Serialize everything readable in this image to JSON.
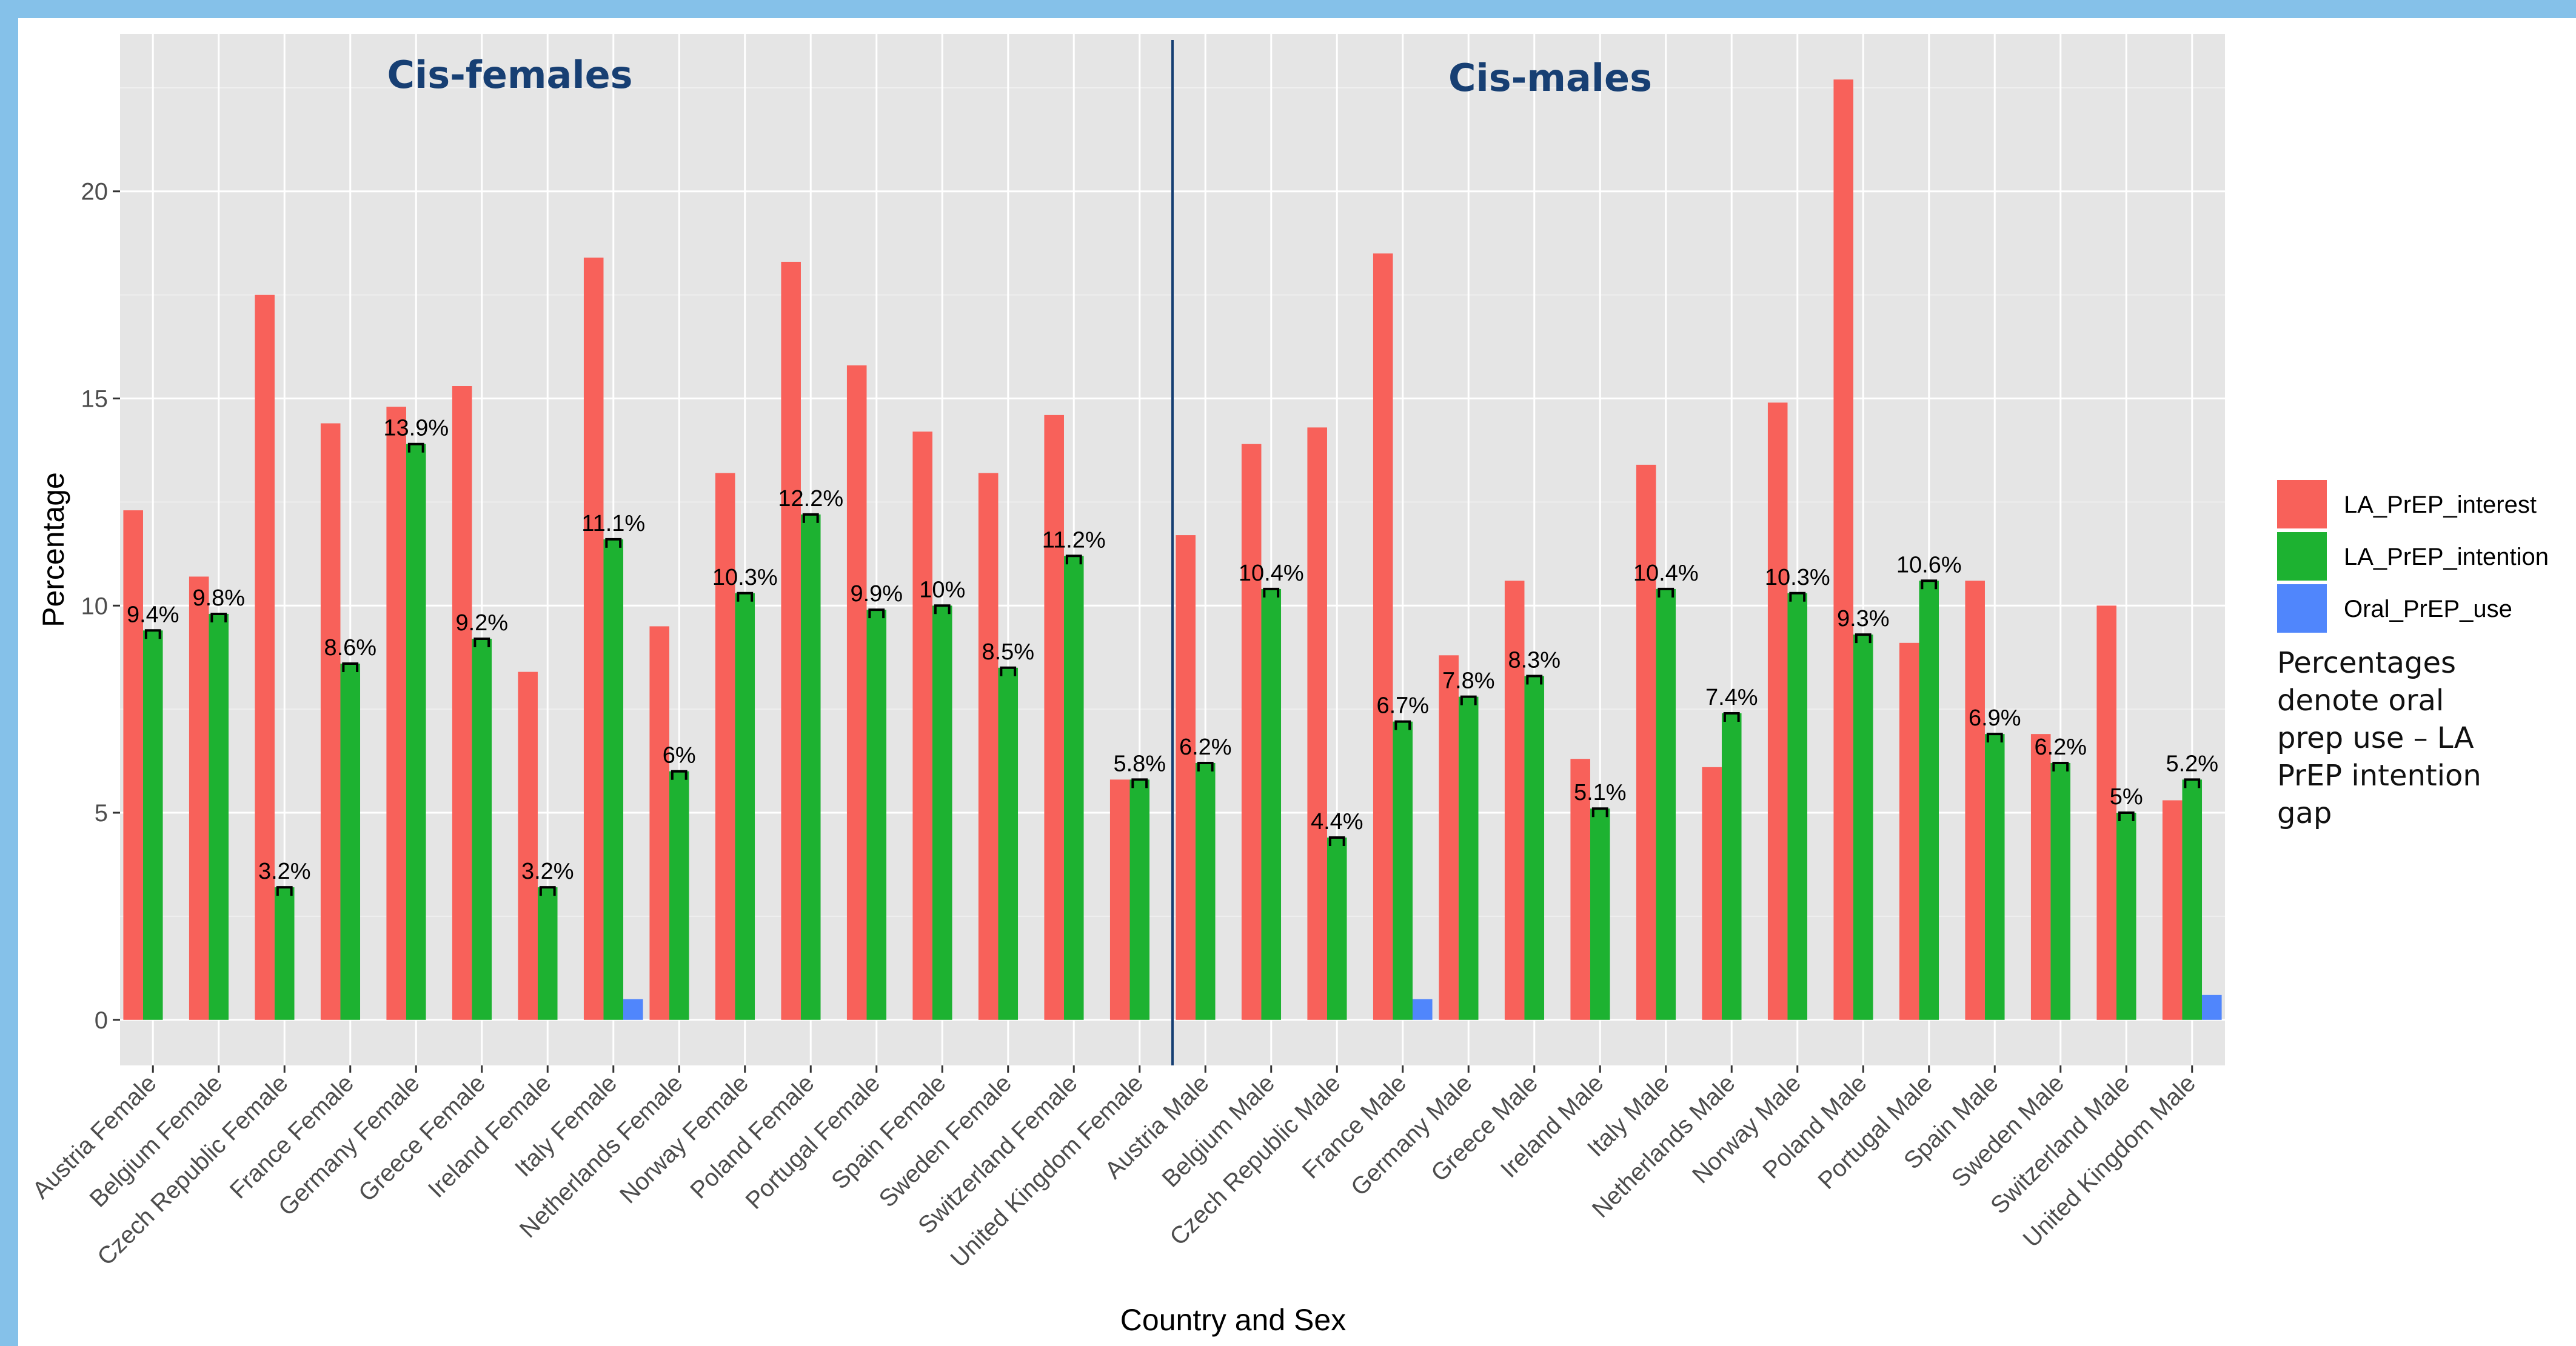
{
  "chart_data": {
    "type": "bar",
    "xlabel": "Country and Sex",
    "ylabel": "Percentage",
    "ylim": [
      -1.1,
      23.8
    ],
    "yticks": [
      0,
      5,
      10,
      15,
      20
    ],
    "grid": true,
    "legend_position": "right",
    "panel_titles": [
      "Cis-females",
      "Cis-males"
    ],
    "categories": [
      "Austria Female",
      "Belgium Female",
      "Czech Republic Female",
      "France Female",
      "Germany Female",
      "Greece Female",
      "Ireland Female",
      "Italy Female",
      "Netherlands Female",
      "Norway Female",
      "Poland Female",
      "Portugal Female",
      "Spain Female",
      "Sweden Female",
      "Switzerland Female",
      "United Kingdom Female",
      "Austria Male",
      "Belgium Male",
      "Czech Republic Male",
      "France Male",
      "Germany Male",
      "Greece Male",
      "Ireland Male",
      "Italy Male",
      "Netherlands Male",
      "Norway Male",
      "Poland Male",
      "Portugal Male",
      "Spain Male",
      "Sweden Male",
      "Switzerland Male",
      "United Kingdom Male"
    ],
    "series": [
      {
        "name": "LA_PrEP_interest",
        "color": "#f8615a",
        "values": [
          12.3,
          10.7,
          17.5,
          14.4,
          14.8,
          15.3,
          8.4,
          18.4,
          9.5,
          13.2,
          18.3,
          15.8,
          14.2,
          13.2,
          14.6,
          5.8,
          11.7,
          13.9,
          14.3,
          18.5,
          8.8,
          10.6,
          6.3,
          13.4,
          6.1,
          14.9,
          22.7,
          9.1,
          10.6,
          6.9,
          10.0,
          5.3
        ]
      },
      {
        "name": "LA_PrEP_intention",
        "color": "#1db231",
        "values": [
          9.4,
          9.8,
          3.2,
          8.6,
          13.9,
          9.2,
          3.2,
          11.6,
          6.0,
          10.3,
          12.2,
          9.9,
          10.0,
          8.5,
          11.2,
          5.8,
          6.2,
          10.4,
          4.4,
          7.2,
          7.8,
          8.3,
          5.1,
          10.4,
          7.4,
          10.3,
          9.3,
          10.6,
          6.9,
          6.2,
          5.0,
          5.8
        ]
      },
      {
        "name": "Oral_PrEP_use",
        "color": "#5086fc",
        "values": [
          0,
          0,
          0,
          0,
          0,
          0,
          0,
          0.5,
          0,
          0,
          0,
          0,
          0,
          0,
          0,
          0,
          0,
          0,
          0,
          0.5,
          0,
          0,
          0,
          0,
          0,
          0,
          0,
          0,
          0,
          0,
          0,
          0.6
        ]
      }
    ],
    "gap_labels": [
      "9.4%",
      "9.8%",
      "3.2%",
      "8.6%",
      "13.9%",
      "9.2%",
      "3.2%",
      "11.1%",
      "6%",
      "10.3%",
      "12.2%",
      "9.9%",
      "10%",
      "8.5%",
      "11.2%",
      "5.8%",
      "6.2%",
      "10.4%",
      "4.4%",
      "6.7%",
      "7.8%",
      "8.3%",
      "5.1%",
      "10.4%",
      "7.4%",
      "10.3%",
      "9.3%",
      "10.6%",
      "6.9%",
      "6.2%",
      "5%",
      "5.2%"
    ],
    "annotation": "Percentages denote oral prep use – LA PrEP intention gap"
  }
}
